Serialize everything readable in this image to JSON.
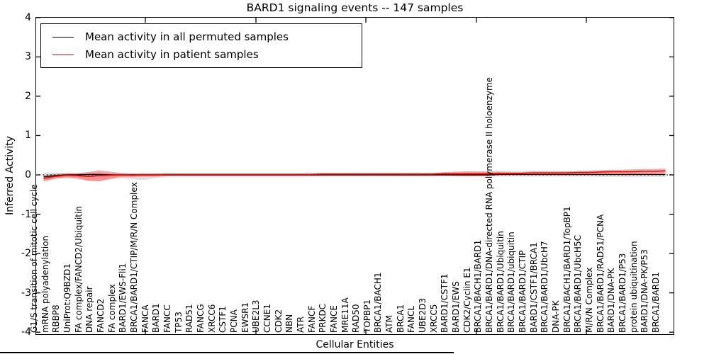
{
  "title": "BARD1 signaling events -- 147 samples",
  "axes": {
    "xlabel": "Cellular Entities",
    "ylabel": "Inferred Activity",
    "ytick_labels": [
      "4",
      "3",
      "2",
      "1",
      "0",
      "-1",
      "-2",
      "-3",
      "-4"
    ]
  },
  "legend": {
    "items": [
      {
        "label": "Mean activity in all permuted samples",
        "color": "#000000"
      },
      {
        "label": "Mean activity in patient samples",
        "color": "#ff0000"
      }
    ]
  },
  "chart_data": {
    "type": "line",
    "title": "BARD1 signaling events -- 147 samples",
    "xlabel": "Cellular Entities",
    "ylabel": "Inferred Activity",
    "ylim": [
      -4,
      4
    ],
    "yticks": [
      4,
      3,
      2,
      1,
      0,
      -1,
      -2,
      -3,
      -4
    ],
    "zero_reference_line": {
      "style": "dotted",
      "color": "#000000",
      "y": 0
    },
    "legend_position": "upper left",
    "grid": false,
    "categories": [
      "G1/S transition of mitotic cell cycle",
      "mRNA polyadenylation",
      "RBBP8",
      "UniProt:Q9BZD1",
      "FA complex/FANCD2/Ubiquitin",
      "DNA repair",
      "FANCD2",
      "FA complex",
      "BARD1/EWS-Fli1",
      "BRCA1/BARD1/CTIP/M/R/N Complex",
      "FANCA",
      "BARD1",
      "FANCC",
      "TP53",
      "RAD51",
      "FANCG",
      "XRCC6",
      "CSTF1",
      "PCNA",
      "EWSR1",
      "UBE2L3",
      "CCNE1",
      "CDK2",
      "NBN",
      "ATR",
      "FANCF",
      "PRKDC",
      "FANCE",
      "MRE11A",
      "RAD50",
      "TOPBP1",
      "BRCA1/BACH1",
      "ATM",
      "BRCA1",
      "FANCL",
      "UBE2D3",
      "XRCC5",
      "BARD1/CSTF1",
      "BARD1/EWS",
      "CDK2/Cyclin E1",
      "BRCA1/BACH1/BARD1",
      "BRCA1/BARD1/DNA-directed RNA polymerase II holoenzyme",
      "BRCA1/BARD1/Ubiquitin",
      "BRCA1/BARD1/ubiquitin",
      "BRCA1/BARD1/CTIP",
      "BARD1/CSTF1/BRCA1",
      "BRCA1/BARD1/UbcH7",
      "DNA-PK",
      "BRCA1/BACH1/BARD1/TopBP1",
      "BRCA1/BARD1/UbcH5C",
      "M/R/N Complex",
      "BRCA1/BARD1/RAD51/PCNA",
      "BARD1/DNA-PK",
      "BRCA1/BARD1/P53",
      "protein ubiquitination",
      "BARD1/DNA-PK/P53",
      "BRCA1/BARD1"
    ],
    "series": [
      {
        "name": "Mean activity in all permuted samples",
        "color": "#000000",
        "values": [
          -0.05,
          -0.02,
          0,
          0,
          0.01,
          0.01,
          0,
          0,
          0,
          0,
          0,
          0,
          0,
          0,
          0,
          0,
          0,
          0,
          0,
          0,
          0,
          0,
          0,
          0,
          0,
          0,
          0,
          0,
          0,
          0,
          0,
          0,
          0,
          0,
          0,
          0,
          0,
          0,
          0,
          0,
          0,
          0.01,
          0.01,
          0.01,
          0.01,
          0.01,
          0.01,
          0.01,
          0.01,
          0.01,
          0.01,
          0.01,
          0.01,
          0.01,
          0.01,
          0.01,
          0.01
        ]
      },
      {
        "name": "Mean activity in patient samples",
        "color": "#ff0000",
        "values": [
          -0.09,
          -0.04,
          -0.01,
          -0.02,
          -0.04,
          -0.02,
          -0.01,
          0,
          -0.01,
          0,
          0,
          0.01,
          0.01,
          0.01,
          0.01,
          0.01,
          0.01,
          0.01,
          0.01,
          0.01,
          0.01,
          0.01,
          0.01,
          0.01,
          0.01,
          0.02,
          0.02,
          0.02,
          0.02,
          0.02,
          0.02,
          0.02,
          0.02,
          0.02,
          0.02,
          0.02,
          0.03,
          0.03,
          0.03,
          0.03,
          0.03,
          0.04,
          0.04,
          0.04,
          0.05,
          0.05,
          0.05,
          0.05,
          0.06,
          0.06,
          0.07,
          0.08,
          0.08,
          0.08,
          0.09,
          0.09,
          0.1
        ]
      }
    ],
    "bands": [
      {
        "name": "permuted samples std band",
        "color": "#888888",
        "opacity": 0.28,
        "upper": [
          0.06,
          0.05,
          0.05,
          0.05,
          0.06,
          0.06,
          0.05,
          0.04,
          0.04,
          0.04,
          0.04,
          0.03,
          0.03,
          0.03,
          0.03,
          0.03,
          0.03,
          0.03,
          0.03,
          0.03,
          0.03,
          0.03,
          0.03,
          0.03,
          0.03,
          0.03,
          0.03,
          0.03,
          0.03,
          0.03,
          0.03,
          0.03,
          0.03,
          0.03,
          0.03,
          0.03,
          0.03,
          0.03,
          0.03,
          0.03,
          0.03,
          0.03,
          0.03,
          0.03,
          0.03,
          0.03,
          0.03,
          0.03,
          0.03,
          0.03,
          0.04,
          0.04,
          0.04,
          0.04,
          0.04,
          0.04,
          0.04
        ],
        "lower": [
          -0.14,
          -0.1,
          -0.08,
          -0.1,
          -0.15,
          -0.17,
          -0.12,
          -0.08,
          -0.11,
          -0.13,
          -0.09,
          -0.05,
          -0.04,
          -0.04,
          -0.04,
          -0.04,
          -0.04,
          -0.04,
          -0.04,
          -0.04,
          -0.04,
          -0.04,
          -0.04,
          -0.04,
          -0.04,
          -0.04,
          -0.04,
          -0.04,
          -0.04,
          -0.04,
          -0.04,
          -0.04,
          -0.04,
          -0.04,
          -0.04,
          -0.04,
          -0.04,
          -0.04,
          -0.04,
          -0.04,
          -0.04,
          -0.04,
          -0.04,
          -0.04,
          -0.04,
          -0.04,
          -0.04,
          -0.04,
          -0.04,
          -0.04,
          -0.05,
          -0.05,
          -0.05,
          -0.05,
          -0.05,
          -0.05,
          -0.05
        ]
      },
      {
        "name": "patient samples std band",
        "color": "#ff0000",
        "opacity": 0.33,
        "upper": [
          -0.01,
          0.02,
          0.04,
          0.04,
          0.07,
          0.12,
          0.08,
          0.05,
          0.03,
          0.04,
          0.04,
          0.04,
          0.04,
          0.04,
          0.04,
          0.04,
          0.04,
          0.04,
          0.04,
          0.04,
          0.04,
          0.04,
          0.04,
          0.04,
          0.04,
          0.05,
          0.05,
          0.05,
          0.05,
          0.05,
          0.05,
          0.05,
          0.05,
          0.05,
          0.05,
          0.05,
          0.07,
          0.08,
          0.09,
          0.09,
          0.09,
          0.09,
          0.08,
          0.08,
          0.09,
          0.09,
          0.09,
          0.09,
          0.1,
          0.11,
          0.12,
          0.13,
          0.13,
          0.14,
          0.15,
          0.15,
          0.16
        ],
        "lower": [
          -0.17,
          -0.1,
          -0.06,
          -0.08,
          -0.15,
          -0.16,
          -0.1,
          -0.05,
          -0.05,
          -0.04,
          -0.04,
          -0.02,
          -0.02,
          -0.02,
          -0.02,
          -0.02,
          -0.02,
          -0.02,
          -0.02,
          -0.02,
          -0.02,
          -0.02,
          -0.02,
          -0.02,
          -0.02,
          -0.01,
          -0.01,
          -0.01,
          -0.01,
          -0.01,
          -0.01,
          -0.01,
          -0.01,
          -0.01,
          -0.01,
          -0.01,
          -0.01,
          -0.02,
          -0.03,
          -0.03,
          -0.03,
          -0.01,
          0.0,
          0.0,
          0.01,
          0.01,
          0.01,
          0.01,
          0.02,
          0.01,
          0.02,
          0.03,
          0.03,
          0.02,
          0.03,
          0.03,
          0.04
        ]
      }
    ]
  }
}
